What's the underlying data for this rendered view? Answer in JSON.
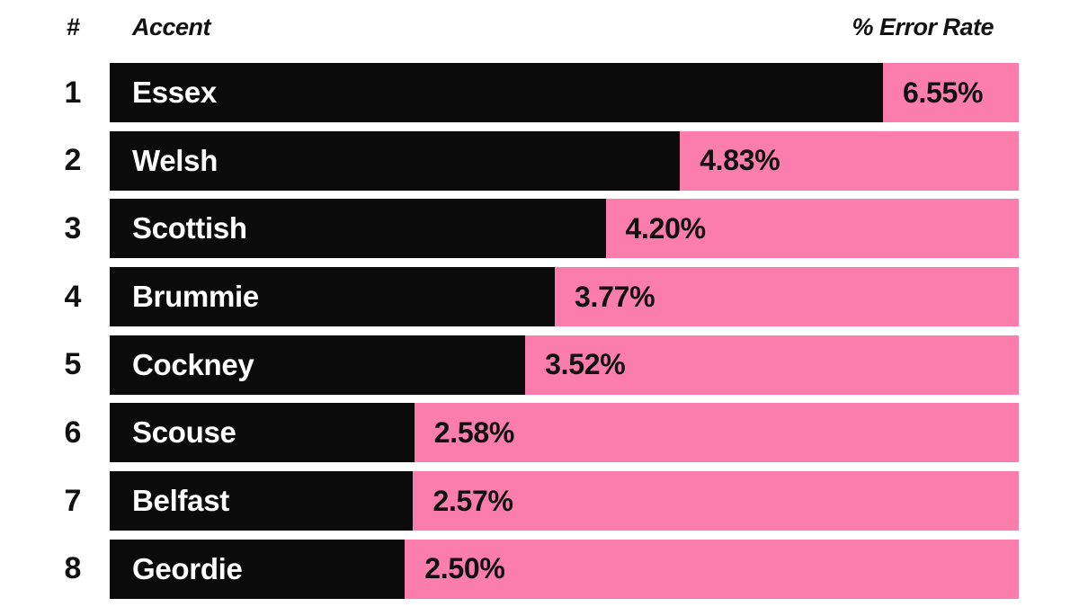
{
  "header": {
    "rank_label": "#",
    "accent_label": "Accent",
    "value_label": "% Error Rate"
  },
  "colors": {
    "bar_fill": "#0b0b0b",
    "track_pink": "#FA7DAB",
    "bar_text": "#ffffff",
    "value_text": "#111111",
    "background": "#ffffff"
  },
  "chart_data": {
    "type": "bar",
    "orientation": "horizontal",
    "title": "",
    "xlabel": "% Error Rate",
    "ylabel": "Accent",
    "categories": [
      "Essex",
      "Welsh",
      "Scottish",
      "Brummie",
      "Cockney",
      "Scouse",
      "Belfast",
      "Geordie"
    ],
    "ranks": [
      1,
      2,
      3,
      4,
      5,
      6,
      7,
      8
    ],
    "values": [
      6.55,
      4.83,
      4.2,
      3.77,
      3.52,
      2.58,
      2.57,
      2.5
    ],
    "value_labels": [
      "6.55%",
      "4.83%",
      "4.20%",
      "3.77%",
      "3.52%",
      "2.58%",
      "2.57%",
      "2.50%"
    ],
    "value_axis_max": 7.7,
    "legend": "none",
    "grid": false
  }
}
